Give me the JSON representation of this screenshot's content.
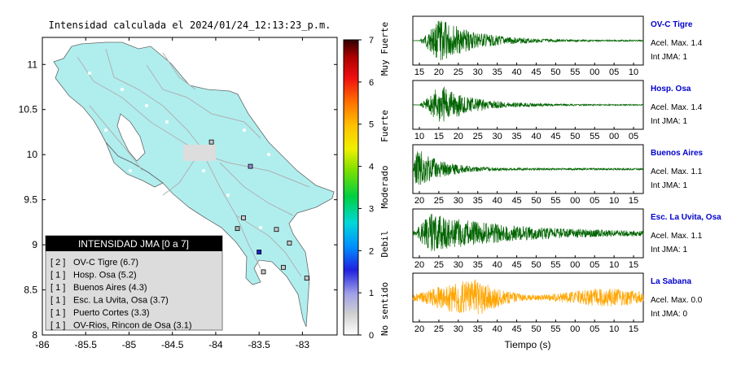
{
  "map": {
    "title": "Intensidad calculada el 2024/01/24_12:13:23_p.m.",
    "x_ticks": [
      "-86",
      "-85.5",
      "-85",
      "-84.5",
      "-84",
      "-83.5",
      "-83"
    ],
    "y_ticks": [
      "11",
      "10.5",
      "10",
      "9.5",
      "9",
      "8.5",
      "8"
    ],
    "xlim": [
      -86,
      -82.6
    ],
    "ylim": [
      8,
      11.3
    ],
    "colorbar": {
      "ticks": [
        "0",
        "1",
        "2",
        "3",
        "4",
        "5",
        "6",
        "7"
      ],
      "range": [
        0,
        7
      ],
      "labels": [
        "No sentido",
        "Debil",
        "Moderado",
        "Fuerte",
        "Muy Fuerte"
      ]
    },
    "legend": {
      "title": "INTENSIDAD JMA [0 a 7]",
      "items": [
        {
          "count": "[ 2 ]",
          "name": "OV-C Tigre (6.7)"
        },
        {
          "count": "[ 1 ]",
          "name": "Hosp. Osa (5.2)"
        },
        {
          "count": "[ 1 ]",
          "name": "Buenos Aires (4.3)"
        },
        {
          "count": "[ 1 ]",
          "name": "Esc. La Uvita, Osa (3.7)"
        },
        {
          "count": "[ 1 ]",
          "name": "Puerto Cortes (3.3)"
        },
        {
          "count": "[ 1 ]",
          "name": "OV-Rios, Rincon de Osa (3.1)"
        }
      ]
    }
  },
  "waveforms": {
    "xlabel": "Tiempo (s)",
    "panels": [
      {
        "name": "OV-C Tigre",
        "acel": "Acel. Max. 1.4",
        "jma": "Int JMA: 1",
        "color": "#006400",
        "ticks": [
          "15",
          "20",
          "25",
          "30",
          "35",
          "40",
          "45",
          "50",
          "55",
          "00",
          "05",
          "10"
        ]
      },
      {
        "name": "Hosp. Osa",
        "acel": "Acel. Max. 1.4",
        "jma": "Int JMA: 1",
        "color": "#006400",
        "ticks": [
          "10",
          "15",
          "20",
          "25",
          "30",
          "35",
          "40",
          "45",
          "50",
          "55",
          "00",
          "05"
        ]
      },
      {
        "name": "Buenos Aires",
        "acel": "Acel. Max. 1.1",
        "jma": "Int JMA: 1",
        "color": "#006400",
        "ticks": [
          "20",
          "25",
          "30",
          "35",
          "40",
          "45",
          "50",
          "55",
          "00",
          "05",
          "10",
          "15"
        ]
      },
      {
        "name": "Esc. La Uvita, Osa",
        "acel": "Acel. Max. 1.1",
        "jma": "Int JMA: 1",
        "color": "#006400",
        "ticks": [
          "20",
          "25",
          "30",
          "35",
          "40",
          "45",
          "50",
          "55",
          "00",
          "05",
          "10",
          "15"
        ]
      },
      {
        "name": "La Sabana",
        "acel": "Acel. Max. 0.0",
        "jma": "Int JMA: 0",
        "color": "#FFA500",
        "ticks": [
          "20",
          "25",
          "30",
          "35",
          "40",
          "45",
          "50",
          "55",
          "00",
          "05",
          "10",
          "15"
        ]
      }
    ]
  },
  "colors": {
    "land": "#B0EEEE",
    "panel_bg": "#FFFFFF",
    "label_blue": "#0000CC"
  },
  "chart_data": [
    {
      "type": "scatter",
      "title": "Intensidad calculada el 2024/01/24_12:13:23_p.m.",
      "xlim": [
        -86,
        -82.6
      ],
      "ylim": [
        8,
        11.3
      ],
      "series": [
        {
          "points": [
            [
              -84.05,
              10.14
            ],
            [
              -83.6,
              9.87
            ],
            [
              -83.68,
              9.3
            ],
            [
              -83.75,
              9.18
            ],
            [
              -83.5,
              8.92
            ],
            [
              -83.3,
              9.17
            ],
            [
              -83.15,
              9.02
            ],
            [
              -83.45,
              8.7
            ],
            [
              -83.22,
              8.75
            ],
            [
              -82.95,
              8.63
            ]
          ]
        }
      ]
    }
  ]
}
